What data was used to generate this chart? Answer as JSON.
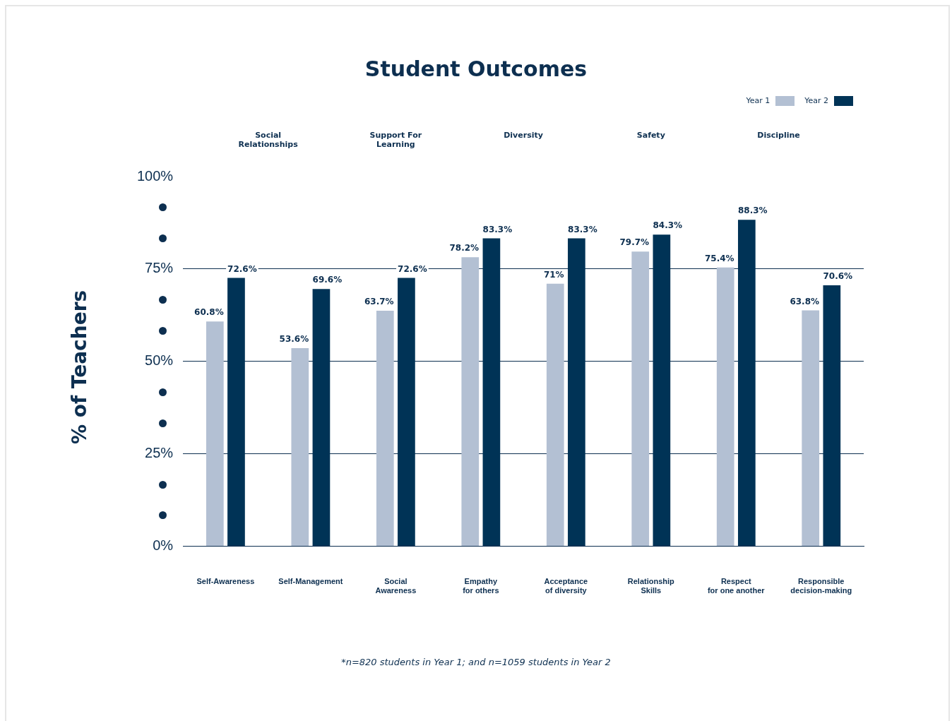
{
  "chart_data": {
    "type": "bar",
    "title": "Student Outcomes",
    "ylabel": "% of Teachers",
    "categories": [
      "Self-Awareness",
      "Self-Management",
      "Social Awareness",
      "Empathy for others",
      "Acceptance of diversity",
      "Relationship Skills",
      "Respect for one another",
      "Responsible decision-making"
    ],
    "series": [
      {
        "name": "Year 1",
        "color": "#b3c0d3",
        "values": [
          60.8,
          53.6,
          63.7,
          78.2,
          71,
          79.7,
          75.4,
          63.8
        ],
        "value_labels": [
          "60.8%",
          "53.6%",
          "63.7%",
          "78.2%",
          "71%",
          "79.7%",
          "75.4%",
          "63.8%"
        ]
      },
      {
        "name": "Year 2",
        "color": "#003356",
        "values": [
          72.6,
          69.6,
          72.6,
          83.3,
          83.3,
          84.3,
          88.3,
          70.6
        ],
        "value_labels": [
          "72.6%",
          "69.6%",
          "72.6%",
          "83.3%",
          "83.3%",
          "84.3%",
          "88.3%",
          "70.6%"
        ]
      }
    ],
    "ylim": [
      0,
      100
    ],
    "yticks": [
      {
        "value": 0,
        "label": "0%"
      },
      {
        "value": 25,
        "label": "25%"
      },
      {
        "value": 50,
        "label": "50%"
      },
      {
        "value": 75,
        "label": "75%"
      },
      {
        "value": 100,
        "label": "100%"
      }
    ],
    "grid": "y",
    "legend": "top right",
    "annotations": [
      "Social Relationships",
      "Support For Learning",
      "Diversity",
      "Safety",
      "Discipline",
      "*n=820 students in Year 1; and n=1059 students in Year 2"
    ]
  }
}
